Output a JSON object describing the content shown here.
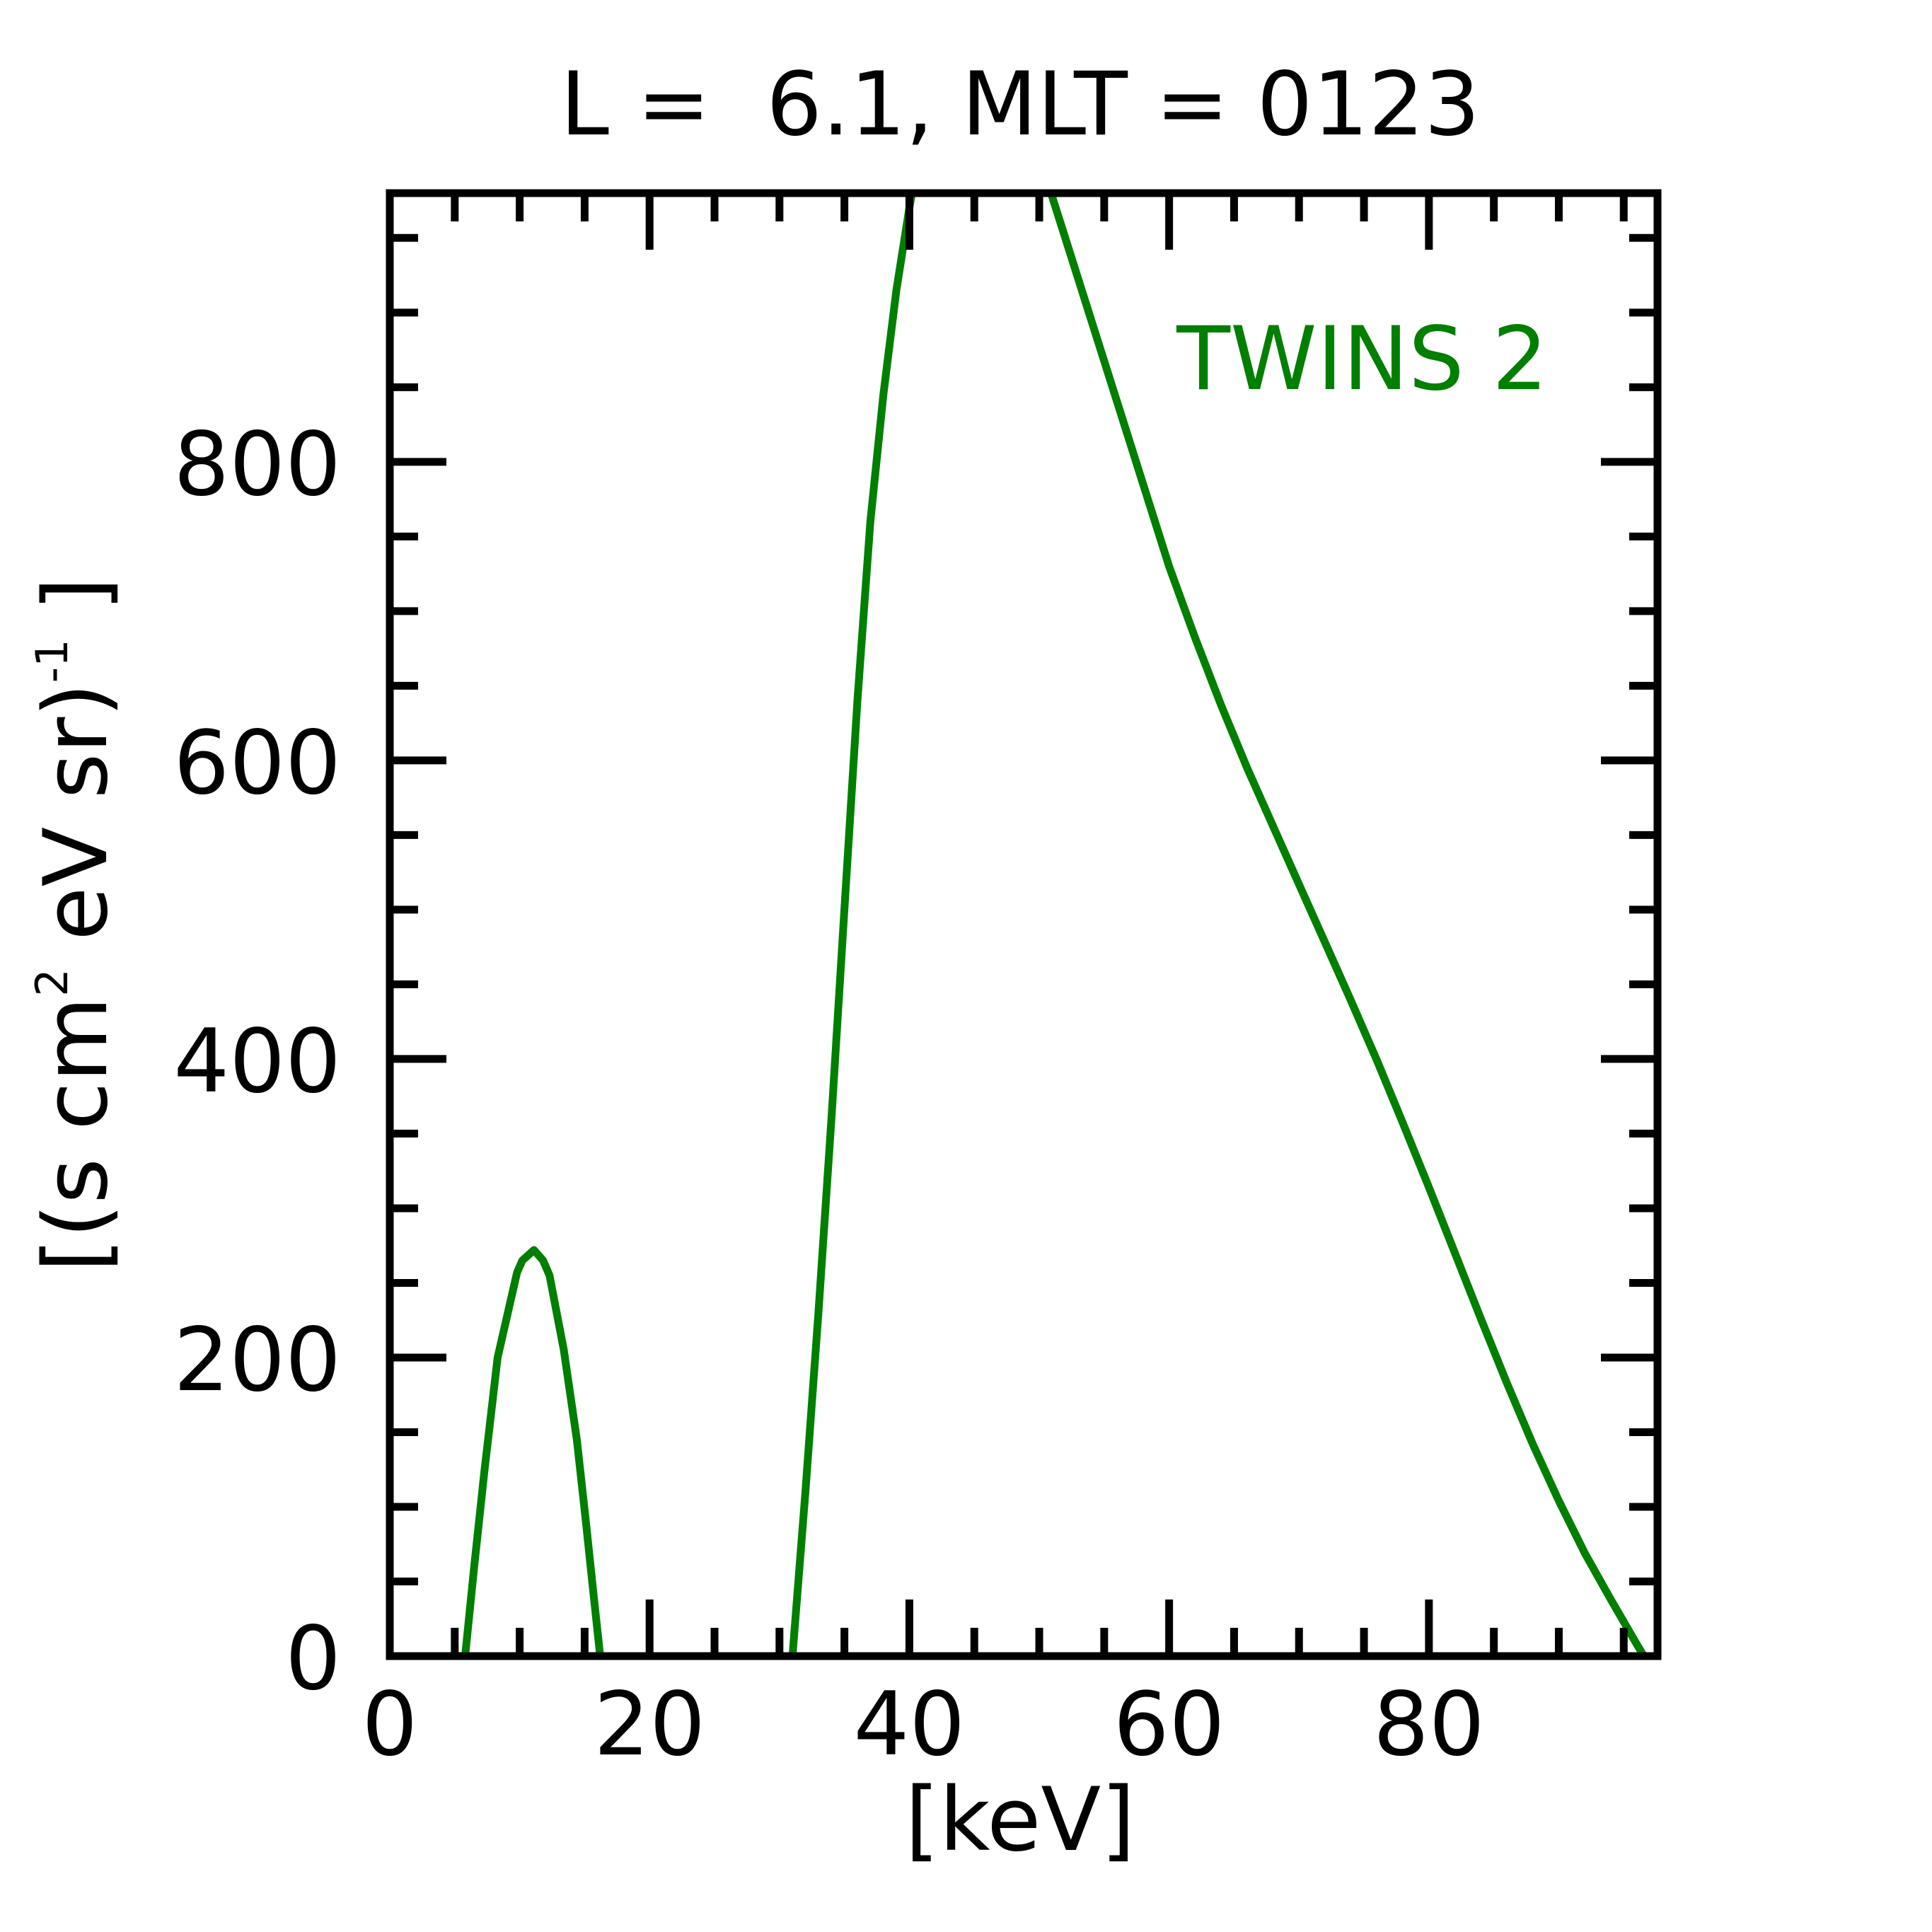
{
  "chart_data": {
    "type": "line",
    "title": "L =  6.1, MLT = 0123",
    "xlabel": "[keV]",
    "ylabel": {
      "part1": "[(s cm",
      "sup1": "2",
      "part2": " eV sr)",
      "sup2": "-1",
      "part3": " ]"
    },
    "xlim": [
      0,
      97.6
    ],
    "ylim": [
      0,
      980
    ],
    "x_ticks": [
      0,
      20,
      40,
      60,
      80
    ],
    "x_tick_labels": [
      "0",
      "20",
      "40",
      "60",
      "80"
    ],
    "y_ticks": [
      0,
      200,
      400,
      600,
      800
    ],
    "y_tick_labels": [
      "0",
      "200",
      "400",
      "600",
      "800"
    ],
    "x_minor_step": 5,
    "y_minor_step": 50,
    "grid": false,
    "legend_position": "top-right",
    "series": [
      {
        "name": "TWINS 2",
        "color": "#007f00",
        "segments": [
          [
            [
              5.8,
              0
            ],
            [
              6.5,
              60
            ],
            [
              7.3,
              125
            ],
            [
              8.3,
              200
            ],
            [
              9.8,
              257
            ],
            [
              10.2,
              265
            ],
            [
              11.1,
              272
            ],
            [
              11.8,
              265
            ],
            [
              12.3,
              255
            ],
            [
              13.4,
              205
            ],
            [
              14.4,
              145
            ],
            [
              15.1,
              90
            ],
            [
              15.7,
              40
            ],
            [
              16.2,
              0
            ]
          ],
          [
            [
              31.0,
              0
            ],
            [
              32.0,
              110
            ],
            [
              33.0,
              230
            ],
            [
              34.0,
              360
            ],
            [
              35.0,
              500
            ],
            [
              36.0,
              640
            ],
            [
              37.0,
              760
            ],
            [
              38.0,
              845
            ],
            [
              39.0,
              915
            ],
            [
              40.0,
              970
            ],
            [
              41.0,
              1020
            ],
            [
              42.0,
              1050
            ],
            [
              43.0,
              1070
            ],
            [
              44.0,
              1080
            ],
            [
              45.0,
              1082
            ],
            [
              46.0,
              1080
            ],
            [
              47.0,
              1070
            ],
            [
              48.0,
              1052
            ],
            [
              49.0,
              1030
            ],
            [
              50.0,
              1005
            ],
            [
              52.0,
              950
            ],
            [
              54.0,
              895
            ],
            [
              56.0,
              840
            ],
            [
              58.0,
              785
            ],
            [
              60.0,
              730
            ],
            [
              62.0,
              682
            ],
            [
              64.0,
              637
            ],
            [
              66.0,
              595
            ],
            [
              68.0,
              556
            ],
            [
              70.0,
              517
            ],
            [
              72.0,
              478
            ],
            [
              74.0,
              439
            ],
            [
              76.0,
              399
            ],
            [
              78.0,
              357
            ],
            [
              80.0,
              314
            ],
            [
              82.0,
              270
            ],
            [
              84.0,
              226
            ],
            [
              86.0,
              183
            ],
            [
              88.0,
              142
            ],
            [
              90.0,
              104
            ],
            [
              92.0,
              69
            ],
            [
              94.0,
              38
            ],
            [
              96.0,
              8
            ],
            [
              97.6,
              -15
            ]
          ]
        ]
      }
    ]
  }
}
